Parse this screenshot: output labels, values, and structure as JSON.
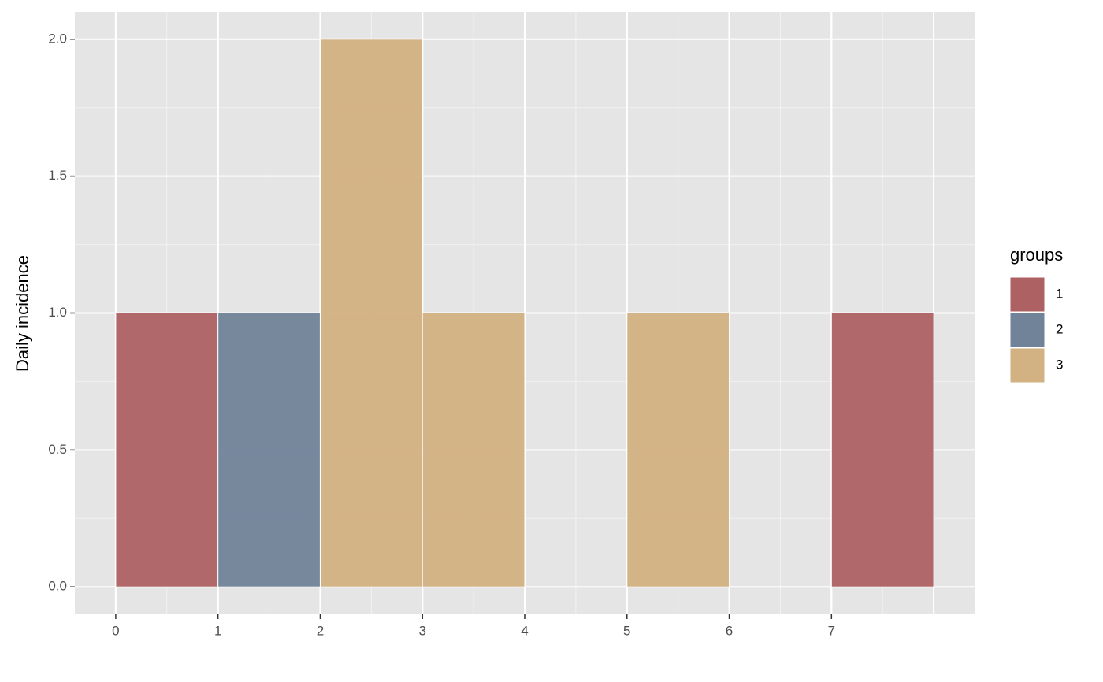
{
  "chart_data": {
    "type": "histogram",
    "y_label": "Daily incidence",
    "bins": [
      0,
      1,
      2,
      3,
      4,
      5,
      6,
      7,
      8
    ],
    "series": [
      {
        "name": "1",
        "color": "#ae6163",
        "values": [
          1,
          0,
          0,
          0,
          0,
          0,
          0,
          1
        ]
      },
      {
        "name": "2",
        "color": "#718399",
        "values": [
          0,
          1,
          0,
          0,
          0,
          0,
          0,
          0
        ]
      },
      {
        "name": "3",
        "color": "#d2b182",
        "values": [
          0,
          0,
          2,
          1,
          0,
          1,
          0,
          0
        ]
      }
    ],
    "stacked": true,
    "xlim": [
      -0.4,
      8.4
    ],
    "xticks": [
      0,
      1,
      2,
      3,
      4,
      5,
      6,
      7
    ],
    "ylim": [
      -0.1,
      2.1
    ],
    "yticks": [
      {
        "value": 0,
        "label": "0.0"
      },
      0.5,
      {
        "value": 1,
        "label": "1.0"
      },
      1.5,
      {
        "value": 2,
        "label": "2.0"
      }
    ],
    "grid": true,
    "legend": {
      "title": "groups",
      "position": "right"
    }
  }
}
